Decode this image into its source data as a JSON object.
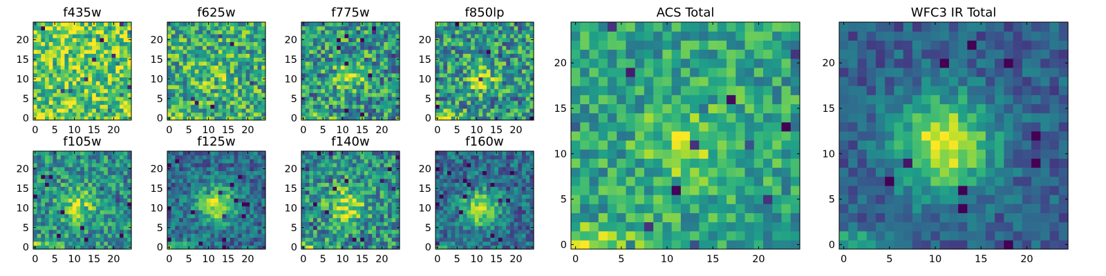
{
  "chart_data": [
    {
      "type": "heatmap",
      "title": "f435w",
      "cmap": "viridis",
      "grid_size": 25,
      "xlim": [
        -0.5,
        24.5
      ],
      "ylim": [
        -0.5,
        24.5
      ],
      "xticks": [
        0,
        5,
        10,
        15,
        20
      ],
      "yticks": [
        0,
        5,
        10,
        15,
        20
      ],
      "xtick_labels": [
        "0",
        "5",
        "10",
        "15",
        "20"
      ],
      "ytick_labels": [
        "0",
        "5",
        "10",
        "15",
        "20"
      ],
      "source": {
        "x": 12,
        "y": 11,
        "amplitude": 0.05,
        "sigma": 3.0
      },
      "corner_bright": 0.2,
      "noise": 0.3,
      "base": 0.76,
      "seed": 11
    },
    {
      "type": "heatmap",
      "title": "f625w",
      "cmap": "viridis",
      "grid_size": 25,
      "xlim": [
        -0.5,
        24.5
      ],
      "ylim": [
        -0.5,
        24.5
      ],
      "xticks": [
        0,
        5,
        10,
        15,
        20
      ],
      "yticks": [
        0,
        5,
        10,
        15,
        20
      ],
      "xtick_labels": [
        "0",
        "5",
        "10",
        "15",
        "20"
      ],
      "ytick_labels": [
        "0",
        "5",
        "10",
        "15",
        "20"
      ],
      "source": {
        "x": 12,
        "y": 11,
        "amplitude": 0.12,
        "sigma": 3.2
      },
      "corner_bright": 0.3,
      "noise": 0.3,
      "base": 0.62,
      "seed": 23
    },
    {
      "type": "heatmap",
      "title": "f775w",
      "cmap": "viridis",
      "grid_size": 25,
      "xlim": [
        -0.5,
        24.5
      ],
      "ylim": [
        -0.5,
        24.5
      ],
      "xticks": [
        0,
        5,
        10,
        15,
        20
      ],
      "yticks": [
        0,
        5,
        10,
        15,
        20
      ],
      "xtick_labels": [
        "0",
        "5",
        "10",
        "15",
        "20"
      ],
      "ytick_labels": [
        "0",
        "5",
        "10",
        "15",
        "20"
      ],
      "source": {
        "x": 12,
        "y": 11,
        "amplitude": 0.3,
        "sigma": 3.0
      },
      "corner_bright": 0.35,
      "noise": 0.32,
      "base": 0.52,
      "seed": 37
    },
    {
      "type": "heatmap",
      "title": "f850lp",
      "cmap": "viridis",
      "grid_size": 25,
      "xlim": [
        -0.5,
        24.5
      ],
      "ylim": [
        -0.5,
        24.5
      ],
      "xticks": [
        0,
        5,
        10,
        15,
        20
      ],
      "yticks": [
        0,
        5,
        10,
        15,
        20
      ],
      "xtick_labels": [
        "0",
        "5",
        "10",
        "15",
        "20"
      ],
      "ytick_labels": [
        "0",
        "5",
        "10",
        "15",
        "20"
      ],
      "source": {
        "x": 11,
        "y": 10,
        "amplitude": 0.35,
        "sigma": 2.5
      },
      "corner_bright": 0.35,
      "noise": 0.32,
      "base": 0.52,
      "seed": 41
    },
    {
      "type": "heatmap",
      "title": "f105w",
      "cmap": "viridis",
      "grid_size": 25,
      "xlim": [
        -0.5,
        24.5
      ],
      "ylim": [
        -0.5,
        24.5
      ],
      "xticks": [
        0,
        5,
        10,
        15,
        20
      ],
      "yticks": [
        0,
        5,
        10,
        15,
        20
      ],
      "xtick_labels": [
        "0",
        "5",
        "10",
        "15",
        "20"
      ],
      "ytick_labels": [
        "0",
        "5",
        "10",
        "15",
        "20"
      ],
      "source": {
        "x": 11,
        "y": 11,
        "amplitude": 0.35,
        "sigma": 3.2
      },
      "corner_bright": 0.3,
      "noise": 0.25,
      "base": 0.5,
      "seed": 53
    },
    {
      "type": "heatmap",
      "title": "f125w",
      "cmap": "viridis",
      "grid_size": 25,
      "xlim": [
        -0.5,
        24.5
      ],
      "ylim": [
        -0.5,
        24.5
      ],
      "xticks": [
        0,
        5,
        10,
        15,
        20
      ],
      "yticks": [
        0,
        5,
        10,
        15,
        20
      ],
      "xtick_labels": [
        "0",
        "5",
        "10",
        "15",
        "20"
      ],
      "ytick_labels": [
        "0",
        "5",
        "10",
        "15",
        "20"
      ],
      "source": {
        "x": 12,
        "y": 11,
        "amplitude": 0.55,
        "sigma": 3.5
      },
      "corner_bright": 0.3,
      "noise": 0.2,
      "base": 0.35,
      "seed": 67
    },
    {
      "type": "heatmap",
      "title": "f140w",
      "cmap": "viridis",
      "grid_size": 25,
      "xlim": [
        -0.5,
        24.5
      ],
      "ylim": [
        -0.5,
        24.5
      ],
      "xticks": [
        0,
        5,
        10,
        15,
        20
      ],
      "yticks": [
        0,
        5,
        10,
        15,
        20
      ],
      "xtick_labels": [
        "0",
        "5",
        "10",
        "15",
        "20"
      ],
      "ytick_labels": [
        "0",
        "5",
        "10",
        "15",
        "20"
      ],
      "source": {
        "x": 11,
        "y": 11,
        "amplitude": 0.4,
        "sigma": 3.2
      },
      "corner_bright": 0.3,
      "noise": 0.28,
      "base": 0.5,
      "seed": 79
    },
    {
      "type": "heatmap",
      "title": "f160w",
      "cmap": "viridis",
      "grid_size": 25,
      "xlim": [
        -0.5,
        24.5
      ],
      "ylim": [
        -0.5,
        24.5
      ],
      "xticks": [
        0,
        5,
        10,
        15,
        20
      ],
      "yticks": [
        0,
        5,
        10,
        15,
        20
      ],
      "xtick_labels": [
        "0",
        "5",
        "10",
        "15",
        "20"
      ],
      "ytick_labels": [
        "0",
        "5",
        "10",
        "15",
        "20"
      ],
      "source": {
        "x": 11,
        "y": 10,
        "amplitude": 0.55,
        "sigma": 3.2
      },
      "corner_bright": 0.3,
      "noise": 0.22,
      "base": 0.35,
      "seed": 83
    },
    {
      "type": "heatmap",
      "title": "ACS Total",
      "cmap": "viridis",
      "grid_size": 25,
      "xlim": [
        -0.5,
        24.5
      ],
      "ylim": [
        -0.5,
        24.5
      ],
      "xticks": [
        0,
        5,
        10,
        15,
        20
      ],
      "yticks": [
        0,
        5,
        10,
        15,
        20
      ],
      "xtick_labels": [
        "0",
        "5",
        "10",
        "15",
        "20"
      ],
      "ytick_labels": [
        "0",
        "5",
        "10",
        "15",
        "20"
      ],
      "source": {
        "x": 12,
        "y": 11,
        "amplitude": 0.25,
        "sigma": 3.2
      },
      "corner_bright": 0.35,
      "noise": 0.22,
      "base": 0.58,
      "seed": 97
    },
    {
      "type": "heatmap",
      "title": "WFC3 IR Total",
      "cmap": "viridis",
      "grid_size": 25,
      "xlim": [
        -0.5,
        24.5
      ],
      "ylim": [
        -0.5,
        24.5
      ],
      "xticks": [
        0,
        5,
        10,
        15,
        20
      ],
      "yticks": [
        0,
        5,
        10,
        15,
        20
      ],
      "xtick_labels": [
        "0",
        "5",
        "10",
        "15",
        "20"
      ],
      "ytick_labels": [
        "0",
        "5",
        "10",
        "15",
        "20"
      ],
      "source": {
        "x": 11,
        "y": 11,
        "amplitude": 0.65,
        "sigma": 3.8
      },
      "corner_bright": 0.3,
      "noise": 0.15,
      "base": 0.3,
      "seed": 101
    }
  ]
}
